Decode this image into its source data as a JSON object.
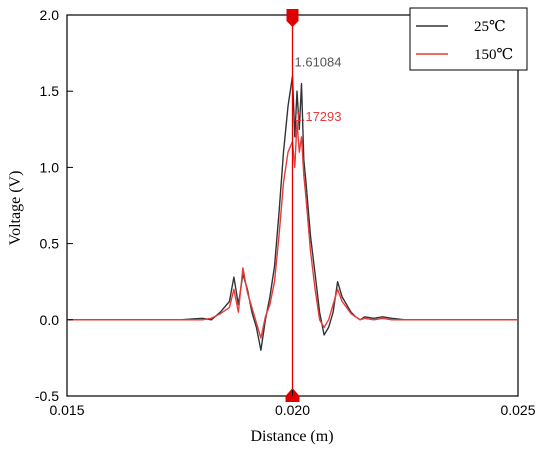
{
  "chart_data": {
    "type": "line",
    "title": "",
    "xlabel": "Distance (m)",
    "ylabel": "Voltage (V)",
    "xlim": [
      0.015,
      0.025
    ],
    "ylim": [
      -0.5,
      2.0
    ],
    "x_ticks": [
      0.015,
      0.02,
      0.025
    ],
    "x_tick_labels": [
      "0.015",
      "0.020",
      "0.025"
    ],
    "y_ticks": [
      -0.5,
      0.0,
      0.5,
      1.0,
      1.5,
      2.0
    ],
    "y_tick_labels": [
      "-0.5",
      "0.0",
      "0.5",
      "1.0",
      "1.5",
      "2.0"
    ],
    "grid": false,
    "legend_position": "top-right",
    "cursor_x": 0.02,
    "annotations": [
      {
        "text": "1.61084",
        "series": "25℃",
        "x": 0.02,
        "y": 1.61084,
        "color": "#555555"
      },
      {
        "text": "1.17293",
        "series": "150℃",
        "x": 0.02,
        "y": 1.17293,
        "color": "#e83a3a"
      }
    ],
    "series": [
      {
        "name": "25℃",
        "color": "#333333",
        "x": [
          0.015,
          0.017,
          0.0175,
          0.018,
          0.0182,
          0.0184,
          0.0186,
          0.0187,
          0.0188,
          0.0189,
          0.019,
          0.0191,
          0.0192,
          0.0193,
          0.0194,
          0.0195,
          0.0196,
          0.0197,
          0.0198,
          0.0199,
          0.02,
          0.02005,
          0.0201,
          0.02015,
          0.0202,
          0.02025,
          0.0203,
          0.0204,
          0.0205,
          0.0206,
          0.0207,
          0.0208,
          0.0209,
          0.021,
          0.0211,
          0.0212,
          0.0213,
          0.0214,
          0.0215,
          0.0216,
          0.0218,
          0.022,
          0.0222,
          0.0225,
          0.023,
          0.025
        ],
        "y": [
          0.0,
          0.0,
          0.0,
          0.01,
          0.0,
          0.05,
          0.12,
          0.28,
          0.1,
          0.3,
          0.2,
          0.05,
          -0.05,
          -0.2,
          0.0,
          0.15,
          0.35,
          0.7,
          1.1,
          1.4,
          1.6,
          1.2,
          1.5,
          1.25,
          1.55,
          1.05,
          0.9,
          0.55,
          0.3,
          0.05,
          -0.1,
          -0.05,
          0.05,
          0.25,
          0.15,
          0.1,
          0.05,
          0.02,
          0.0,
          0.02,
          0.01,
          0.02,
          0.01,
          0.0,
          0.0,
          0.0
        ]
      },
      {
        "name": "150℃",
        "color": "#e83a3a",
        "x": [
          0.015,
          0.017,
          0.0175,
          0.018,
          0.0182,
          0.0184,
          0.0186,
          0.0187,
          0.0188,
          0.0189,
          0.019,
          0.0191,
          0.0192,
          0.0193,
          0.0194,
          0.0195,
          0.0196,
          0.0197,
          0.0198,
          0.0199,
          0.02,
          0.02005,
          0.0201,
          0.02015,
          0.0202,
          0.02025,
          0.0203,
          0.0204,
          0.0205,
          0.0206,
          0.0207,
          0.0208,
          0.0209,
          0.021,
          0.0211,
          0.0212,
          0.0213,
          0.0214,
          0.0215,
          0.0216,
          0.0218,
          0.022,
          0.0222,
          0.0225,
          0.023,
          0.025
        ],
        "y": [
          0.0,
          0.0,
          0.0,
          0.0,
          0.01,
          0.04,
          0.08,
          0.2,
          0.05,
          0.34,
          0.18,
          0.08,
          -0.02,
          -0.12,
          0.02,
          0.1,
          0.25,
          0.55,
          0.9,
          1.1,
          1.17,
          1.0,
          1.3,
          1.1,
          1.2,
          0.95,
          0.8,
          0.45,
          0.2,
          0.0,
          -0.05,
          0.0,
          0.1,
          0.2,
          0.12,
          0.08,
          0.04,
          0.02,
          0.0,
          0.01,
          0.0,
          0.01,
          0.0,
          0.0,
          0.0,
          0.0
        ]
      }
    ]
  }
}
